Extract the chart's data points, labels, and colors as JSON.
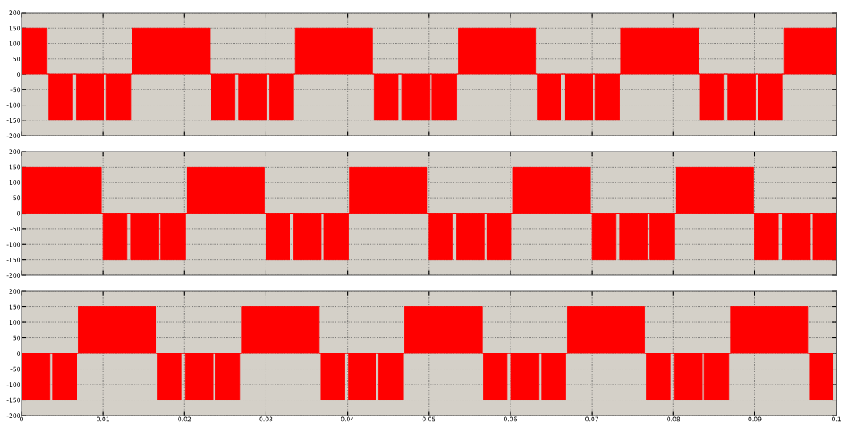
{
  "chart_data": [
    {
      "type": "area",
      "xlim": [
        0,
        0.1
      ],
      "ylim": [
        -200,
        200
      ],
      "xticks": [
        0,
        0.01,
        0.02,
        0.03,
        0.04,
        0.05,
        0.06,
        0.07,
        0.08,
        0.09,
        0.1
      ],
      "yticks": [
        -200,
        -150,
        -100,
        -50,
        0,
        50,
        100,
        150,
        200
      ],
      "grid": true,
      "tick_labels": "y",
      "x": [
        0,
        0,
        0.0031,
        0.0031,
        0.0033,
        0.0033,
        0.0062,
        0.0062,
        0.0067,
        0.0067,
        0.0101,
        0.0101,
        0.0104,
        0.0104,
        0.0134,
        0.0134,
        0.0136,
        0.0136,
        0.0231,
        0.0231,
        0.0233,
        0.0233,
        0.0262,
        0.0262,
        0.0267,
        0.0267,
        0.0301,
        0.0301,
        0.0304,
        0.0304,
        0.0334,
        0.0334,
        0.0336,
        0.0336,
        0.0431,
        0.0431,
        0.0433,
        0.0433,
        0.0462,
        0.0462,
        0.0467,
        0.0467,
        0.0501,
        0.0501,
        0.0504,
        0.0504,
        0.0534,
        0.0534,
        0.0536,
        0.0536,
        0.0631,
        0.0631,
        0.0633,
        0.0633,
        0.0662,
        0.0662,
        0.0667,
        0.0667,
        0.0701,
        0.0701,
        0.0704,
        0.0704,
        0.0734,
        0.0734,
        0.0736,
        0.0736,
        0.0831,
        0.0831,
        0.0833,
        0.0833,
        0.0862,
        0.0862,
        0.0867,
        0.0867,
        0.0901,
        0.0901,
        0.0904,
        0.0904,
        0.0934,
        0.0934,
        0.0936,
        0.0936,
        0.1,
        0.1
      ],
      "series": [
        {
          "color": "#ff0000",
          "values": [
            0,
            150,
            150,
            0,
            0,
            -150,
            -150,
            0,
            0,
            -150,
            -150,
            0,
            0,
            -150,
            -150,
            0,
            0,
            150,
            150,
            0,
            0,
            -150,
            -150,
            0,
            0,
            -150,
            -150,
            0,
            0,
            -150,
            -150,
            0,
            0,
            150,
            150,
            0,
            0,
            -150,
            -150,
            0,
            0,
            -150,
            -150,
            0,
            0,
            -150,
            -150,
            0,
            0,
            150,
            150,
            0,
            0,
            -150,
            -150,
            0,
            0,
            -150,
            -150,
            0,
            0,
            -150,
            -150,
            0,
            0,
            150,
            150,
            0,
            0,
            -150,
            -150,
            0,
            0,
            -150,
            -150,
            0,
            0,
            -150,
            -150,
            0,
            0,
            150,
            150,
            0
          ]
        }
      ]
    },
    {
      "type": "area",
      "xlim": [
        0,
        0.1
      ],
      "ylim": [
        -200,
        200
      ],
      "xticks": [
        0,
        0.01,
        0.02,
        0.03,
        0.04,
        0.05,
        0.06,
        0.07,
        0.08,
        0.09,
        0.1
      ],
      "yticks": [
        -200,
        -150,
        -100,
        -50,
        0,
        50,
        100,
        150,
        200
      ],
      "grid": true,
      "tick_labels": "y",
      "x": [
        0,
        0,
        0.0098,
        0.0098,
        0.01,
        0.01,
        0.0129,
        0.0129,
        0.0134,
        0.0134,
        0.0168,
        0.0168,
        0.0171,
        0.0171,
        0.0201,
        0.0201,
        0.0203,
        0.0203,
        0.0298,
        0.0298,
        0.03,
        0.03,
        0.0329,
        0.0329,
        0.0334,
        0.0334,
        0.0368,
        0.0368,
        0.0371,
        0.0371,
        0.0401,
        0.0401,
        0.0403,
        0.0403,
        0.0498,
        0.0498,
        0.05,
        0.05,
        0.0529,
        0.0529,
        0.0534,
        0.0534,
        0.0568,
        0.0568,
        0.0571,
        0.0571,
        0.0601,
        0.0601,
        0.0603,
        0.0603,
        0.0698,
        0.0698,
        0.07,
        0.07,
        0.0729,
        0.0729,
        0.0734,
        0.0734,
        0.0768,
        0.0768,
        0.0771,
        0.0771,
        0.0801,
        0.0801,
        0.0803,
        0.0803,
        0.0898,
        0.0898,
        0.09,
        0.09,
        0.0929,
        0.0929,
        0.0934,
        0.0934,
        0.0968,
        0.0968,
        0.0971,
        0.0971,
        0.1,
        0.1
      ],
      "series": [
        {
          "color": "#ff0000",
          "values": [
            0,
            150,
            150,
            0,
            0,
            -150,
            -150,
            0,
            0,
            -150,
            -150,
            0,
            0,
            -150,
            -150,
            0,
            0,
            150,
            150,
            0,
            0,
            -150,
            -150,
            0,
            0,
            -150,
            -150,
            0,
            0,
            -150,
            -150,
            0,
            0,
            150,
            150,
            0,
            0,
            -150,
            -150,
            0,
            0,
            -150,
            -150,
            0,
            0,
            -150,
            -150,
            0,
            0,
            150,
            150,
            0,
            0,
            -150,
            -150,
            0,
            0,
            -150,
            -150,
            0,
            0,
            -150,
            -150,
            0,
            0,
            150,
            150,
            0,
            0,
            -150,
            -150,
            0,
            0,
            -150,
            -150,
            0,
            0,
            -150,
            -150,
            0
          ]
        }
      ]
    },
    {
      "type": "area",
      "xlim": [
        0,
        0.1
      ],
      "ylim": [
        -200,
        200
      ],
      "xticks": [
        0,
        0.01,
        0.02,
        0.03,
        0.04,
        0.05,
        0.06,
        0.07,
        0.08,
        0.09,
        {
          "value": 0.1,
          "label": "0.1"
        }
      ],
      "yticks": [
        -200,
        -150,
        -100,
        -50,
        0,
        50,
        100,
        150,
        200
      ],
      "grid": true,
      "x": [
        0,
        0,
        0.0035,
        0.0035,
        0.0038,
        0.0038,
        0.0068,
        0.0068,
        0.007,
        0.007,
        0.0165,
        0.0165,
        0.0167,
        0.0167,
        0.0196,
        0.0196,
        0.0201,
        0.0201,
        0.0235,
        0.0235,
        0.0238,
        0.0238,
        0.0268,
        0.0268,
        0.027,
        0.027,
        0.0365,
        0.0365,
        0.0367,
        0.0367,
        0.0396,
        0.0396,
        0.0401,
        0.0401,
        0.0435,
        0.0435,
        0.0438,
        0.0438,
        0.0468,
        0.0468,
        0.047,
        0.047,
        0.0565,
        0.0565,
        0.0567,
        0.0567,
        0.0596,
        0.0596,
        0.0601,
        0.0601,
        0.0635,
        0.0635,
        0.0638,
        0.0638,
        0.0668,
        0.0668,
        0.067,
        0.067,
        0.0765,
        0.0765,
        0.0767,
        0.0767,
        0.0796,
        0.0796,
        0.0801,
        0.0801,
        0.0835,
        0.0835,
        0.0838,
        0.0838,
        0.0868,
        0.0868,
        0.087,
        0.087,
        0.0965,
        0.0965,
        0.0967,
        0.0967,
        0.0996,
        0.0996
      ],
      "series": [
        {
          "color": "#ff0000",
          "values": [
            0,
            -150,
            -150,
            0,
            0,
            -150,
            -150,
            0,
            0,
            150,
            150,
            0,
            0,
            -150,
            -150,
            0,
            0,
            -150,
            -150,
            0,
            0,
            -150,
            -150,
            0,
            0,
            150,
            150,
            0,
            0,
            -150,
            -150,
            0,
            0,
            -150,
            -150,
            0,
            0,
            -150,
            -150,
            0,
            0,
            150,
            150,
            0,
            0,
            -150,
            -150,
            0,
            0,
            -150,
            -150,
            0,
            0,
            -150,
            -150,
            0,
            0,
            150,
            150,
            0,
            0,
            -150,
            -150,
            0,
            0,
            -150,
            -150,
            0,
            0,
            -150,
            -150,
            0,
            0,
            150,
            150,
            0,
            0,
            -150,
            -150,
            0
          ]
        }
      ]
    }
  ]
}
